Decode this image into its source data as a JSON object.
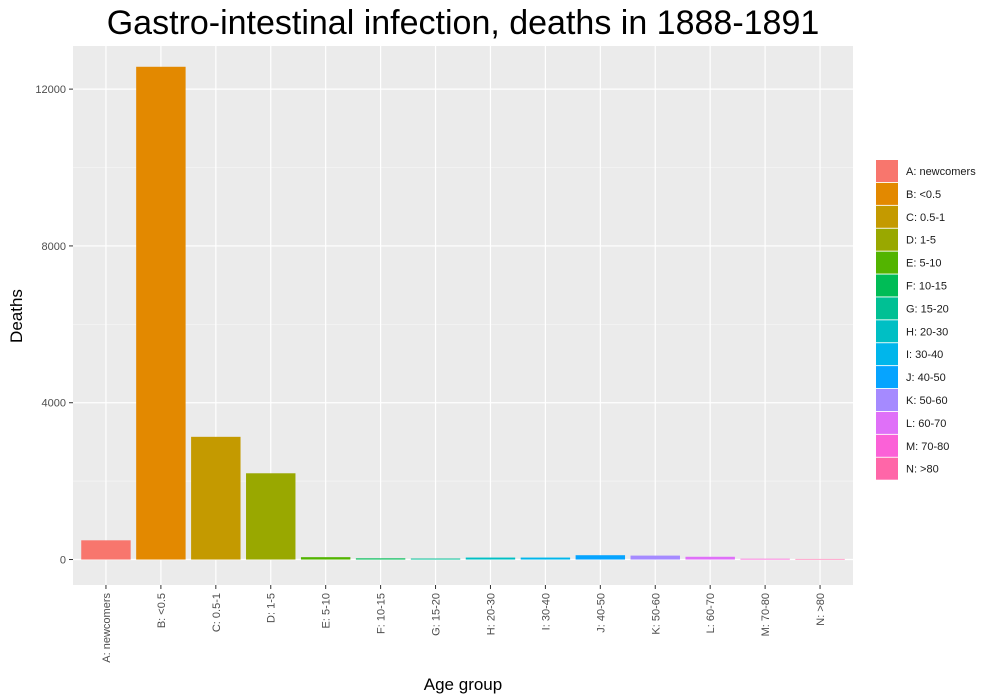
{
  "chart_data": {
    "type": "bar",
    "title": "Gastro-intestinal infection, deaths in 1888-1891",
    "xlabel": "Age group",
    "ylabel": "Deaths",
    "ylim": [
      -650,
      13100
    ],
    "yticks": [
      0,
      4000,
      8000,
      12000
    ],
    "grid": true,
    "legend_position": "right",
    "categories": [
      "A: newcomers",
      "B: <0.5",
      "C: 0.5-1",
      "D: 1-5",
      "E: 5-10",
      "F: 10-15",
      "G: 15-20",
      "H: 20-30",
      "I: 30-40",
      "J: 40-50",
      "K: 50-60",
      "L: 60-70",
      "M: 70-80",
      "N: >80"
    ],
    "values": [
      490,
      12570,
      3130,
      2200,
      60,
      30,
      25,
      50,
      50,
      110,
      100,
      70,
      20,
      15
    ],
    "colors": [
      "#F8766D",
      "#E38900",
      "#C49A00",
      "#99A800",
      "#53B400",
      "#00BC56",
      "#00C094",
      "#00BFC4",
      "#00B6EB",
      "#06A4FF",
      "#A58AFF",
      "#DF70F8",
      "#FB61D7",
      "#FF66A8"
    ]
  }
}
